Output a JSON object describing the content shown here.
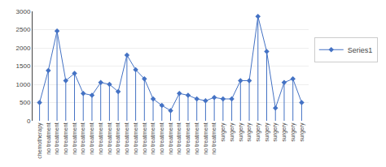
{
  "chart_data": {
    "type": "stem",
    "categories": [
      "chemotherapy",
      "no treatment",
      "no treatment",
      "no treatment",
      "no treatment",
      "no treatment",
      "no treatment",
      "no treatment",
      "no treatment",
      "no treatment",
      "no treatment",
      "no treatment",
      "no treatment",
      "no treatment",
      "no treatment",
      "no treatment",
      "no treatment",
      "no treatment",
      "no treatment",
      "no treatment",
      "no treatment",
      "surgery",
      "surgery",
      "surgery",
      "surgery",
      "surgery",
      "surgery",
      "surgery",
      "surgery",
      "surgery",
      "surgery"
    ],
    "series": [
      {
        "name": "Series1",
        "color": "#4472C4",
        "marker": "diamond",
        "values": [
          500,
          1380,
          2460,
          1100,
          1300,
          750,
          700,
          1050,
          1000,
          800,
          1800,
          1400,
          1150,
          600,
          420,
          280,
          750,
          700,
          600,
          550,
          640,
          600,
          600,
          1100,
          1100,
          2860,
          1900,
          350,
          1050,
          1150,
          500
        ]
      }
    ],
    "ylim": [
      0,
      3000
    ],
    "yticks": [
      0,
      500,
      1000,
      1500,
      2000,
      2500,
      3000
    ],
    "grid": true,
    "legend": "right"
  }
}
